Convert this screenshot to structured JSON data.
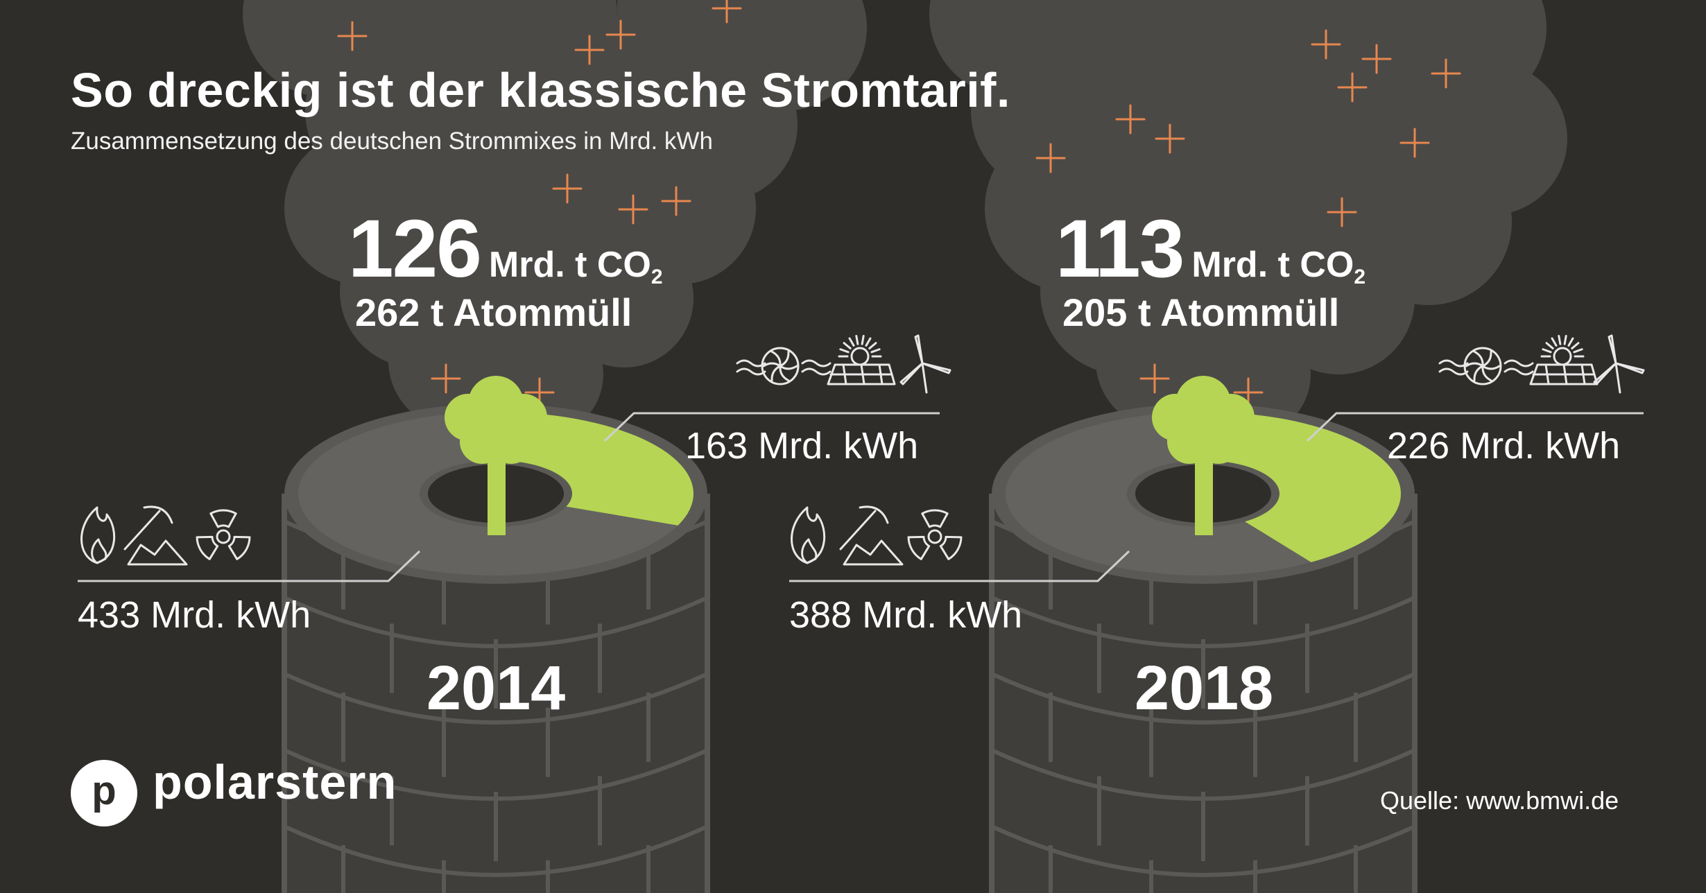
{
  "title": "So dreckig ist der klassische Stromtarif.",
  "subtitle": "Zusammensetzung des deutschen Strommixes in Mrd. kWh",
  "brand": {
    "logo_letter": "p",
    "name": "polarstern"
  },
  "source": "Quelle: www.bmwi.de",
  "colors": {
    "background": "#2e2d2a",
    "smoke": "#4a4946",
    "tower_wall": "#3f3e3b",
    "tower_lines": "#5a5956",
    "ring_conventional": "#646360",
    "ring_renewable": "#b6d554",
    "spark": "#e8874e",
    "text": "#ffffff"
  },
  "icons": {
    "conventional": [
      "flame-icon",
      "coal-mining-icon",
      "radiation-icon"
    ],
    "renewable": [
      "hydro-turbine-icon",
      "solar-panel-icon",
      "wind-turbine-icon"
    ],
    "center": "tree-icon"
  },
  "chart_data": {
    "type": "pie",
    "title": "So dreckig ist der klassische Stromtarif.",
    "subtitle": "Zusammensetzung des deutschen Strommixes in Mrd. kWh",
    "panels": [
      {
        "year": "2014",
        "co2_value": "126",
        "co2_unit": "Mrd. t CO",
        "co2_subscript": "2",
        "nuclear_waste": "262 t Atommüll",
        "conventional": {
          "value": 433,
          "label": "433 Mrd. kWh"
        },
        "renewable": {
          "value": 163,
          "label": "163 Mrd. kWh"
        }
      },
      {
        "year": "2018",
        "co2_value": "113",
        "co2_unit": "Mrd. t CO",
        "co2_subscript": "2",
        "nuclear_waste": "205 t Atommüll",
        "conventional": {
          "value": 388,
          "label": "388 Mrd. kWh"
        },
        "renewable": {
          "value": 226,
          "label": "226 Mrd. kWh"
        }
      }
    ]
  }
}
